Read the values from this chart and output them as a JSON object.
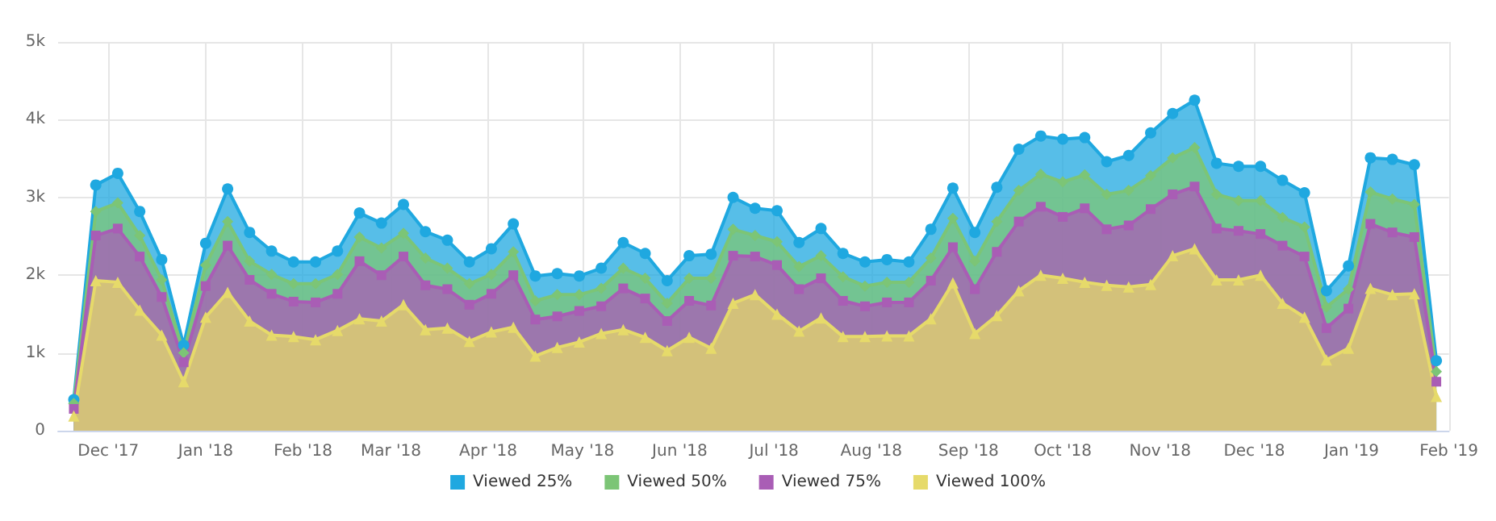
{
  "chart_data": {
    "type": "area",
    "x": [
      "2017-11-20",
      "2017-11-27",
      "2017-12-04",
      "2017-12-11",
      "2017-12-18",
      "2017-12-25",
      "2018-01-01",
      "2018-01-08",
      "2018-01-15",
      "2018-01-22",
      "2018-01-29",
      "2018-02-05",
      "2018-02-12",
      "2018-02-19",
      "2018-02-26",
      "2018-03-05",
      "2018-03-12",
      "2018-03-19",
      "2018-03-26",
      "2018-04-02",
      "2018-04-09",
      "2018-04-16",
      "2018-04-23",
      "2018-04-30",
      "2018-05-07",
      "2018-05-14",
      "2018-05-21",
      "2018-05-28",
      "2018-06-04",
      "2018-06-11",
      "2018-06-18",
      "2018-06-25",
      "2018-07-02",
      "2018-07-09",
      "2018-07-16",
      "2018-07-23",
      "2018-07-30",
      "2018-08-06",
      "2018-08-13",
      "2018-08-20",
      "2018-08-27",
      "2018-09-03",
      "2018-09-10",
      "2018-09-17",
      "2018-09-24",
      "2018-10-01",
      "2018-10-08",
      "2018-10-15",
      "2018-10-22",
      "2018-10-29",
      "2018-11-05",
      "2018-11-12",
      "2018-11-19",
      "2018-11-26",
      "2018-12-03",
      "2018-12-10",
      "2018-12-17",
      "2018-12-24",
      "2018-12-31",
      "2019-01-07",
      "2019-01-14",
      "2019-01-21",
      "2019-01-28"
    ],
    "series": [
      {
        "name": "Viewed 25%",
        "color": "#1fa8e0",
        "marker": "circle",
        "values": [
          400,
          3160,
          3310,
          2820,
          2200,
          1100,
          2410,
          3110,
          2550,
          2310,
          2170,
          2170,
          2310,
          2800,
          2670,
          2910,
          2560,
          2450,
          2170,
          2340,
          2660,
          1990,
          2020,
          1990,
          2090,
          2420,
          2280,
          1930,
          2250,
          2270,
          3000,
          2860,
          2830,
          2420,
          2600,
          2280,
          2170,
          2200,
          2170,
          2590,
          3120,
          2550,
          3130,
          3620,
          3790,
          3750,
          3770,
          3460,
          3540,
          3830,
          4080,
          4250,
          3440,
          3400,
          3400,
          3220,
          3060,
          1800,
          2120,
          3510,
          3490,
          3420,
          900
        ]
      },
      {
        "name": "Viewed 50%",
        "color": "#7cc576",
        "marker": "diamond",
        "values": [
          350,
          2820,
          2930,
          2510,
          1940,
          1000,
          2130,
          2690,
          2180,
          2010,
          1890,
          1890,
          2010,
          2490,
          2350,
          2540,
          2220,
          2090,
          1890,
          2010,
          2300,
          1670,
          1750,
          1750,
          1830,
          2090,
          1960,
          1640,
          1960,
          1960,
          2590,
          2510,
          2430,
          2110,
          2250,
          1980,
          1860,
          1910,
          1910,
          2220,
          2730,
          2180,
          2690,
          3090,
          3300,
          3200,
          3290,
          3040,
          3090,
          3280,
          3510,
          3640,
          3040,
          2960,
          2960,
          2740,
          2620,
          1590,
          1820,
          3070,
          2980,
          2910,
          760
        ]
      },
      {
        "name": "Viewed 75%",
        "color": "#a95db5",
        "marker": "square",
        "values": [
          280,
          2510,
          2600,
          2240,
          1720,
          880,
          1860,
          2380,
          1940,
          1760,
          1660,
          1650,
          1760,
          2180,
          2000,
          2240,
          1870,
          1820,
          1620,
          1760,
          2000,
          1430,
          1470,
          1540,
          1600,
          1830,
          1700,
          1410,
          1670,
          1610,
          2250,
          2240,
          2130,
          1820,
          1960,
          1670,
          1600,
          1650,
          1650,
          1930,
          2360,
          1820,
          2300,
          2690,
          2880,
          2750,
          2860,
          2590,
          2640,
          2850,
          3040,
          3140,
          2600,
          2570,
          2530,
          2380,
          2240,
          1320,
          1570,
          2660,
          2550,
          2490,
          630
        ]
      },
      {
        "name": "Viewed 100%",
        "color": "#e6da6a",
        "marker": "triangle",
        "values": [
          190,
          1930,
          1910,
          1550,
          1230,
          630,
          1460,
          1780,
          1410,
          1230,
          1210,
          1170,
          1290,
          1440,
          1410,
          1620,
          1300,
          1320,
          1150,
          1270,
          1330,
          960,
          1070,
          1140,
          1250,
          1300,
          1200,
          1030,
          1200,
          1060,
          1640,
          1750,
          1500,
          1280,
          1450,
          1210,
          1210,
          1220,
          1220,
          1440,
          1900,
          1250,
          1480,
          1800,
          2000,
          1960,
          1910,
          1870,
          1850,
          1880,
          2250,
          2340,
          1940,
          1940,
          2000,
          1640,
          1460,
          910,
          1060,
          1830,
          1750,
          1760,
          440
        ]
      }
    ],
    "xlim": [
      "2017-11-15",
      "2019-02-01"
    ],
    "xticks": [
      {
        "value": "2017-12-01",
        "label": "Dec '17"
      },
      {
        "value": "2018-01-01",
        "label": "Jan '18"
      },
      {
        "value": "2018-02-01",
        "label": "Feb '18"
      },
      {
        "value": "2018-03-01",
        "label": "Mar '18"
      },
      {
        "value": "2018-04-01",
        "label": "Apr '18"
      },
      {
        "value": "2018-05-01",
        "label": "May '18"
      },
      {
        "value": "2018-06-01",
        "label": "Jun '18"
      },
      {
        "value": "2018-07-01",
        "label": "Jul '18"
      },
      {
        "value": "2018-08-01",
        "label": "Aug '18"
      },
      {
        "value": "2018-09-01",
        "label": "Sep '18"
      },
      {
        "value": "2018-10-01",
        "label": "Oct '18"
      },
      {
        "value": "2018-11-01",
        "label": "Nov '18"
      },
      {
        "value": "2018-12-01",
        "label": "Dec '18"
      },
      {
        "value": "2019-01-01",
        "label": "Jan '19"
      },
      {
        "value": "2019-02-01",
        "label": "Feb '19"
      }
    ],
    "ylim": [
      0,
      5000
    ],
    "yticks": [
      0,
      {
        "value": 1000,
        "label": "1k"
      },
      {
        "value": 2000,
        "label": "2k"
      },
      {
        "value": 3000,
        "label": "3k"
      },
      {
        "value": 4000,
        "label": "4k"
      },
      {
        "value": 5000,
        "label": "5k"
      }
    ],
    "grid": true,
    "legend": "bottom"
  }
}
